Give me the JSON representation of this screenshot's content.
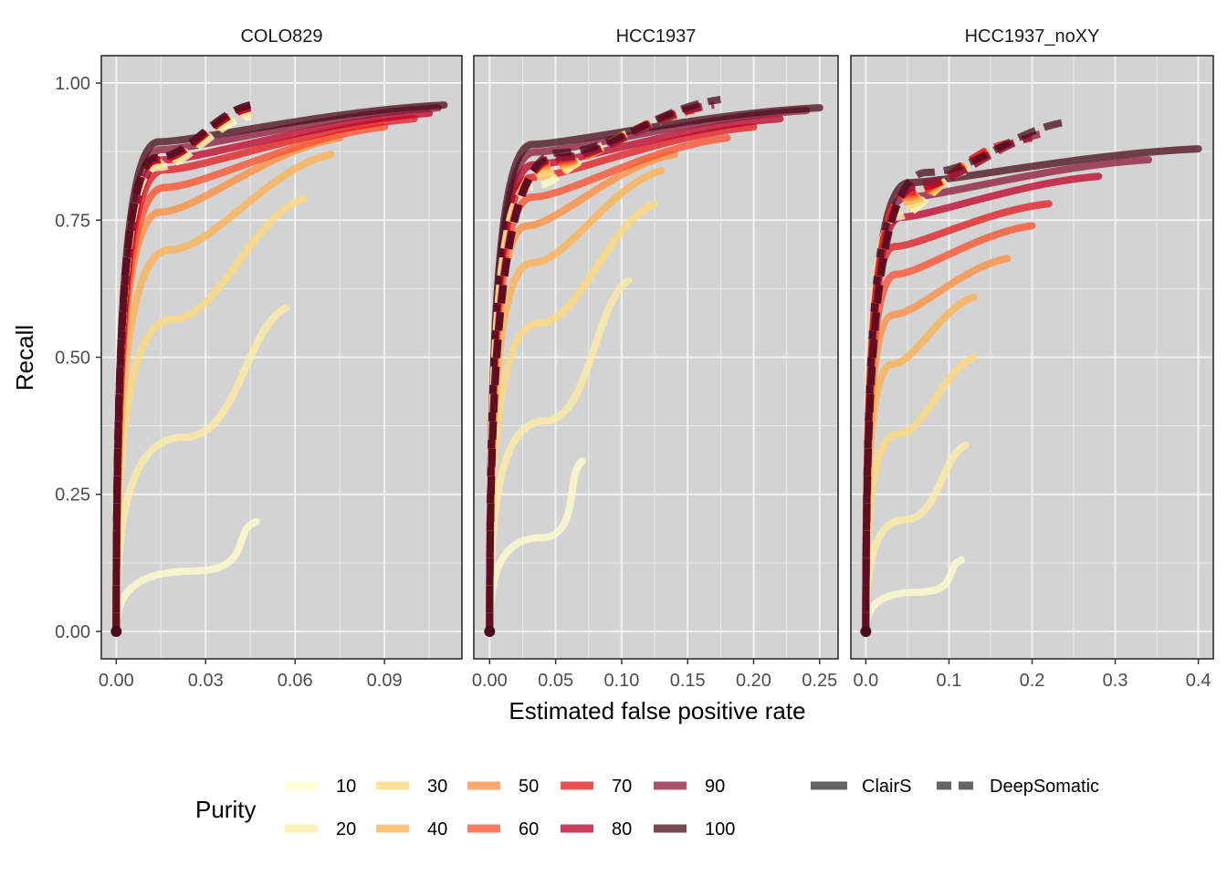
{
  "chart_data": {
    "type": "line",
    "xlabel": "Estimated false positive rate",
    "ylabel": "Recall",
    "y_ticks": [
      "0.00",
      "0.25",
      "0.50",
      "0.75",
      "1.00"
    ],
    "grid": true,
    "legend_position": "bottom",
    "legend": {
      "purity_title": "Purity",
      "purity_levels": [
        "10",
        "20",
        "30",
        "40",
        "50",
        "60",
        "70",
        "80",
        "90",
        "100"
      ],
      "purity_colors": [
        "#ffffcc",
        "#ffeda0",
        "#fed976",
        "#feb24c",
        "#fd8d3c",
        "#fc4e2a",
        "#e31a1c",
        "#bd0026",
        "#8b1a3a",
        "#4a0c1c"
      ],
      "methods": [
        "ClairS",
        "DeepSomatic"
      ]
    },
    "panels": [
      {
        "title": "COLO829",
        "xlim": [
          -0.005,
          0.116
        ],
        "ylim": [
          -0.05,
          1.05
        ],
        "x_ticks": [
          "0.00",
          "0.03",
          "0.06",
          "0.09"
        ],
        "clairs_end_fpr": [
          0.047,
          0.057,
          0.063,
          0.072,
          0.075,
          0.09,
          0.1,
          0.105,
          0.108,
          0.11
        ],
        "clairs_end_recall": [
          0.2,
          0.59,
          0.79,
          0.87,
          0.9,
          0.92,
          0.935,
          0.945,
          0.955,
          0.96
        ],
        "deepsomatic_end_fpr": [
          0.045,
          0.045,
          0.045,
          0.045,
          0.045,
          0.045,
          0.045,
          0.045,
          0.045,
          0.045
        ],
        "deepsomatic_end_recall": [
          0.94,
          0.945,
          0.95,
          0.955,
          0.955,
          0.955,
          0.955,
          0.955,
          0.96,
          0.96
        ]
      },
      {
        "title": "HCC1937",
        "xlim": [
          -0.012,
          0.264
        ],
        "ylim": [
          -0.05,
          1.05
        ],
        "x_ticks": [
          "0.00",
          "0.05",
          "0.10",
          "0.15",
          "0.20",
          "0.25"
        ],
        "clairs_end_fpr": [
          0.07,
          0.105,
          0.125,
          0.13,
          0.14,
          0.18,
          0.2,
          0.22,
          0.24,
          0.25
        ],
        "clairs_end_recall": [
          0.31,
          0.64,
          0.78,
          0.84,
          0.87,
          0.9,
          0.92,
          0.935,
          0.95,
          0.955
        ],
        "deepsomatic_end_fpr": [
          0.1,
          0.12,
          0.13,
          0.14,
          0.15,
          0.155,
          0.16,
          0.165,
          0.17,
          0.175
        ],
        "deepsomatic_end_recall": [
          0.9,
          0.92,
          0.93,
          0.94,
          0.945,
          0.95,
          0.955,
          0.96,
          0.96,
          0.97
        ]
      },
      {
        "title": "HCC1937_noXY",
        "xlim": [
          -0.018,
          0.418
        ],
        "ylim": [
          -0.05,
          1.05
        ],
        "x_ticks": [
          "0.0",
          "0.1",
          "0.2",
          "0.3",
          "0.4"
        ],
        "clairs_end_fpr": [
          0.115,
          0.12,
          0.13,
          0.13,
          0.17,
          0.2,
          0.22,
          0.28,
          0.34,
          0.4
        ],
        "clairs_end_recall": [
          0.13,
          0.34,
          0.5,
          0.61,
          0.68,
          0.74,
          0.78,
          0.83,
          0.86,
          0.88
        ],
        "deepsomatic_end_fpr": [
          0.12,
          0.13,
          0.14,
          0.15,
          0.16,
          0.165,
          0.17,
          0.2,
          0.22,
          0.245
        ],
        "deepsomatic_end_recall": [
          0.84,
          0.85,
          0.86,
          0.87,
          0.88,
          0.885,
          0.89,
          0.9,
          0.91,
          0.93
        ]
      }
    ]
  }
}
